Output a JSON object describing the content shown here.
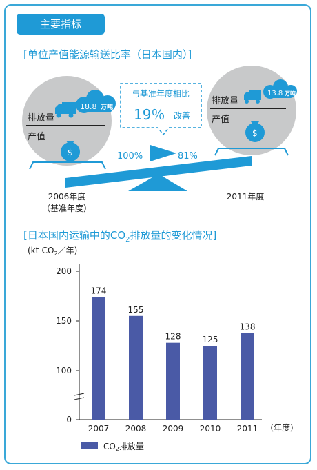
{
  "section_tag": "主要指标",
  "ratio_section": {
    "title": "[单位产值能源输送比率（日本国内）]",
    "left": {
      "emission_label": "排放量",
      "value_label": "产值",
      "emission_value": "18.8",
      "emission_unit": "万吨",
      "year": "2006年度",
      "year_note": "（基准年度）"
    },
    "right": {
      "emission_label": "排放量",
      "value_label": "产值",
      "emission_value": "13.8",
      "emission_unit": "万吨",
      "year": "2011年度"
    },
    "comparison": {
      "title": "与基准年度相比",
      "value": "19％",
      "note": "改善"
    },
    "base_percent": "100%",
    "new_percent": "81%",
    "money_symbol": "$"
  },
  "chart_section": {
    "title_pre": "[日本国内运输中的CO",
    "title_sub": "2",
    "title_post": "排放量的变化情况]"
  },
  "colors": {
    "accent": "#1f9ad6",
    "bar": "#4a5aa6",
    "circle": "#c8c9ca"
  },
  "chart_data": {
    "type": "bar",
    "categories": [
      "2007",
      "2008",
      "2009",
      "2010",
      "2011"
    ],
    "values": [
      174,
      155,
      128,
      125,
      138
    ],
    "ylabel_pre": "(kt-CO",
    "ylabel_sub": "2",
    "ylabel_post": "／年)",
    "xlabel": "（年度）",
    "yticks": [
      "200",
      "150",
      "100",
      "0"
    ],
    "legend_pre": "CO",
    "legend_sub": "2",
    "legend_post": "排放量",
    "axis_break": true
  }
}
